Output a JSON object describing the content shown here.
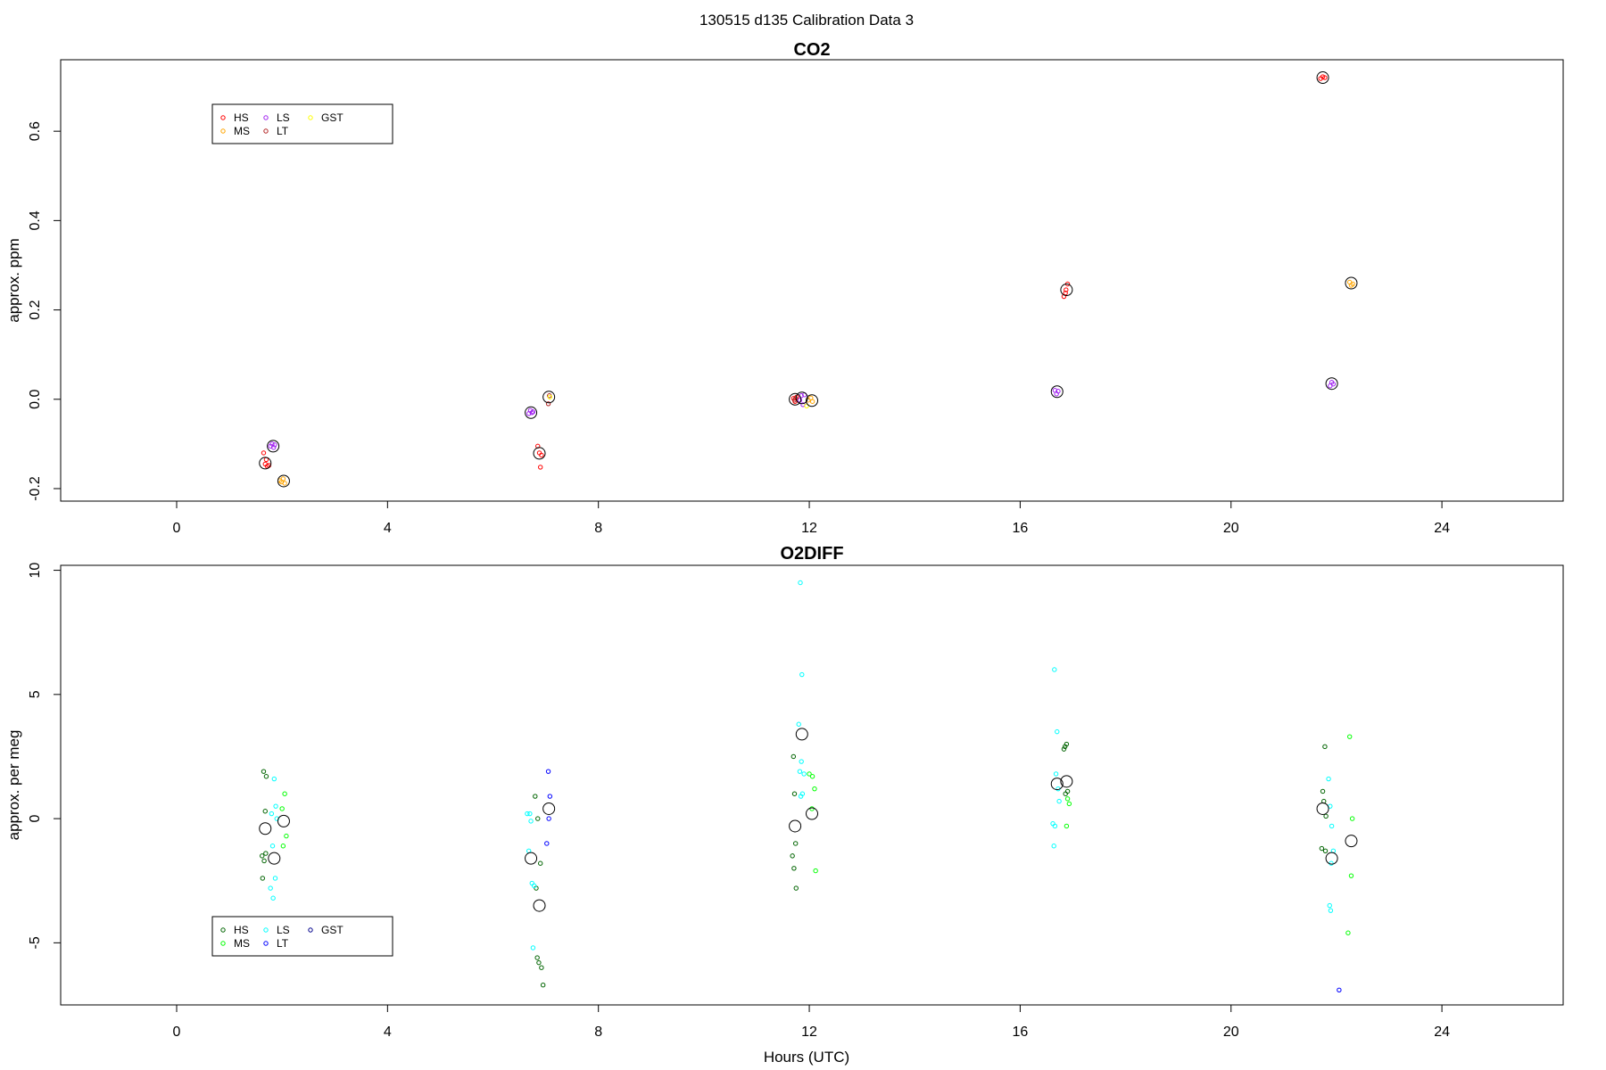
{
  "figure": {
    "suptitle": "130515   d135   Calibration Data 3",
    "xlabel": "Hours (UTC)"
  },
  "chart_data": [
    {
      "type": "scatter",
      "title": "CO2",
      "xlabel": "",
      "ylabel": "approx. ppm",
      "xlim": [
        -2.2,
        26.3
      ],
      "ylim": [
        -0.228,
        0.76
      ],
      "xticks": [
        0,
        4,
        8,
        12,
        16,
        20,
        24
      ],
      "yticks": [
        -0.2,
        0.0,
        0.2,
        0.4,
        0.6
      ],
      "ytick_labels": [
        "-0.2",
        "0.0",
        "0.2",
        "0.4",
        "0.6"
      ],
      "grid": false,
      "legend_position": "top-left",
      "legend": [
        {
          "label": "HS",
          "color": "#ff0000"
        },
        {
          "label": "MS",
          "color": "#ffa500"
        },
        {
          "label": "LS",
          "color": "#a020f0"
        },
        {
          "label": "LT",
          "color": "#b22222"
        },
        {
          "label": "GST",
          "color": "#ffff00"
        }
      ],
      "series": [
        {
          "name": "HS",
          "color": "#ff0000",
          "points": [
            [
              1.65,
              -0.12
            ],
            [
              1.68,
              -0.145
            ],
            [
              1.72,
              -0.15
            ],
            [
              1.7,
              -0.135
            ],
            [
              1.75,
              -0.148
            ],
            [
              6.85,
              -0.105
            ],
            [
              6.88,
              -0.12
            ],
            [
              6.9,
              -0.152
            ],
            [
              6.92,
              -0.125
            ],
            [
              11.7,
              0.002
            ],
            [
              11.73,
              -0.005
            ],
            [
              11.76,
              0.005
            ],
            [
              16.83,
              0.23
            ],
            [
              16.87,
              0.245
            ],
            [
              16.9,
              0.258
            ],
            [
              16.86,
              0.238
            ],
            [
              21.7,
              0.718
            ],
            [
              21.74,
              0.722
            ],
            [
              21.78,
              0.72
            ]
          ]
        },
        {
          "name": "MS",
          "color": "#ffa500",
          "points": [
            [
              1.96,
              -0.182
            ],
            [
              1.99,
              -0.185
            ],
            [
              2.02,
              -0.178
            ],
            [
              2.05,
              -0.188
            ],
            [
              11.98,
              -0.002
            ],
            [
              12.03,
              0.003
            ],
            [
              12.06,
              -0.005
            ],
            [
              22.25,
              0.262
            ],
            [
              22.28,
              0.255
            ],
            [
              22.31,
              0.258
            ]
          ]
        },
        {
          "name": "LS",
          "color": "#a020f0",
          "points": [
            [
              1.78,
              -0.105
            ],
            [
              1.81,
              -0.1
            ],
            [
              1.84,
              -0.108
            ],
            [
              1.86,
              -0.102
            ],
            [
              6.68,
              -0.032
            ],
            [
              6.71,
              -0.025
            ],
            [
              6.74,
              -0.03
            ],
            [
              6.76,
              -0.028
            ],
            [
              11.85,
              0.008
            ],
            [
              11.88,
              -0.012
            ],
            [
              11.82,
              -0.002
            ],
            [
              11.91,
              0.01
            ],
            [
              16.66,
              0.02
            ],
            [
              16.69,
              0.012
            ],
            [
              16.72,
              0.018
            ],
            [
              21.88,
              0.03
            ],
            [
              21.91,
              0.038
            ],
            [
              21.94,
              0.034
            ]
          ]
        },
        {
          "name": "LT",
          "color": "#b22222",
          "points": [
            [
              7.05,
              -0.01
            ],
            [
              7.07,
              0.008
            ],
            [
              11.72,
              -0.002
            ],
            [
              11.74,
              0.002
            ]
          ]
        },
        {
          "name": "GST",
          "color": "#ffff00",
          "points": [
            [
              7.08,
              0.005
            ],
            [
              11.95,
              -0.015
            ]
          ]
        }
      ],
      "means": [
        [
          1.68,
          -0.143
        ],
        [
          1.83,
          -0.105
        ],
        [
          2.03,
          -0.183
        ],
        [
          6.72,
          -0.03
        ],
        [
          6.88,
          -0.121
        ],
        [
          7.06,
          0.005
        ],
        [
          11.73,
          0.0
        ],
        [
          11.86,
          0.003
        ],
        [
          12.05,
          -0.003
        ],
        [
          16.7,
          0.017
        ],
        [
          16.88,
          0.245
        ],
        [
          21.74,
          0.72
        ],
        [
          21.91,
          0.035
        ],
        [
          22.28,
          0.26
        ]
      ]
    },
    {
      "type": "scatter",
      "title": "O2DIFF",
      "xlabel": "Hours (UTC)",
      "ylabel": "approx. per meg",
      "xlim": [
        -2.2,
        26.3
      ],
      "ylim": [
        -7.5,
        10.2
      ],
      "xticks": [
        0,
        4,
        8,
        12,
        16,
        20,
        24
      ],
      "yticks": [
        -5,
        0,
        5,
        10
      ],
      "ytick_labels": [
        "-5",
        "0",
        "5",
        "10"
      ],
      "grid": false,
      "legend_position": "bottom-left",
      "legend": [
        {
          "label": "HS",
          "color": "#006400"
        },
        {
          "label": "MS",
          "color": "#00ff00"
        },
        {
          "label": "LS",
          "color": "#00ffff"
        },
        {
          "label": "LT",
          "color": "#0000ff"
        },
        {
          "label": "GST",
          "color": "#00008b"
        }
      ],
      "series": [
        {
          "name": "HS",
          "color": "#006400",
          "points": [
            [
              1.65,
              1.9
            ],
            [
              1.7,
              1.7
            ],
            [
              1.68,
              0.3
            ],
            [
              1.62,
              -1.5
            ],
            [
              1.66,
              -1.7
            ],
            [
              1.63,
              -2.4
            ],
            [
              1.69,
              -1.4
            ],
            [
              6.8,
              0.9
            ],
            [
              6.85,
              0.0
            ],
            [
              6.9,
              -1.8
            ],
            [
              6.82,
              -2.8
            ],
            [
              6.87,
              -5.8
            ],
            [
              6.92,
              -6.0
            ],
            [
              6.95,
              -6.7
            ],
            [
              6.84,
              -5.6
            ],
            [
              11.7,
              2.5
            ],
            [
              11.72,
              1.0
            ],
            [
              11.74,
              -1.0
            ],
            [
              11.68,
              -1.5
            ],
            [
              11.71,
              -2.0
            ],
            [
              11.75,
              -2.8
            ],
            [
              16.85,
              2.9
            ],
            [
              16.88,
              3.0
            ],
            [
              16.83,
              2.8
            ],
            [
              16.9,
              1.1
            ],
            [
              16.86,
              1.0
            ],
            [
              21.78,
              2.9
            ],
            [
              21.74,
              1.1
            ],
            [
              21.76,
              0.7
            ],
            [
              21.8,
              0.1
            ],
            [
              21.72,
              -1.2
            ],
            [
              21.79,
              -1.3
            ]
          ]
        },
        {
          "name": "MS",
          "color": "#00ff00",
          "points": [
            [
              2.05,
              1.0
            ],
            [
              2.0,
              0.4
            ],
            [
              2.08,
              -0.7
            ],
            [
              2.02,
              -1.1
            ],
            [
              12.0,
              1.8
            ],
            [
              12.06,
              1.7
            ],
            [
              12.1,
              1.2
            ],
            [
              12.05,
              0.4
            ],
            [
              12.12,
              -2.1
            ],
            [
              16.9,
              0.8
            ],
            [
              16.93,
              0.6
            ],
            [
              16.88,
              -0.3
            ],
            [
              22.25,
              3.3
            ],
            [
              22.3,
              0.0
            ],
            [
              22.28,
              -2.3
            ],
            [
              22.22,
              -4.6
            ]
          ]
        },
        {
          "name": "LS",
          "color": "#00ffff",
          "points": [
            [
              1.8,
              0.2
            ],
            [
              1.85,
              1.6
            ],
            [
              1.88,
              0.5
            ],
            [
              1.9,
              0.0
            ],
            [
              1.82,
              -1.1
            ],
            [
              1.87,
              -2.4
            ],
            [
              1.78,
              -2.8
            ],
            [
              1.83,
              -3.2
            ],
            [
              6.65,
              0.2
            ],
            [
              6.7,
              0.2
            ],
            [
              6.72,
              -0.1
            ],
            [
              6.68,
              -1.3
            ],
            [
              6.74,
              -2.6
            ],
            [
              6.78,
              -2.7
            ],
            [
              6.76,
              -5.2
            ],
            [
              11.8,
              3.8
            ],
            [
              11.85,
              2.3
            ],
            [
              11.9,
              1.8
            ],
            [
              11.82,
              1.9
            ],
            [
              11.87,
              1.0
            ],
            [
              11.84,
              0.9
            ],
            [
              11.86,
              5.8
            ],
            [
              11.83,
              9.5
            ],
            [
              16.65,
              6.0
            ],
            [
              16.7,
              3.5
            ],
            [
              16.68,
              1.8
            ],
            [
              16.72,
              1.2
            ],
            [
              16.74,
              0.7
            ],
            [
              16.62,
              -0.2
            ],
            [
              16.66,
              -0.3
            ],
            [
              16.64,
              -1.1
            ],
            [
              21.85,
              1.6
            ],
            [
              21.88,
              0.5
            ],
            [
              21.91,
              -0.3
            ],
            [
              21.94,
              -1.3
            ],
            [
              21.9,
              -1.8
            ],
            [
              21.87,
              -3.5
            ],
            [
              21.89,
              -3.7
            ]
          ]
        },
        {
          "name": "LT",
          "color": "#0000ff",
          "points": [
            [
              7.05,
              1.9
            ],
            [
              7.08,
              0.9
            ],
            [
              7.06,
              0.0
            ],
            [
              7.02,
              -1.0
            ],
            [
              22.05,
              -6.9
            ]
          ]
        },
        {
          "name": "GST",
          "color": "#00008b",
          "points": []
        }
      ],
      "means": [
        [
          1.68,
          -0.4
        ],
        [
          1.85,
          -1.6
        ],
        [
          2.03,
          -0.1
        ],
        [
          6.72,
          -1.6
        ],
        [
          6.88,
          -3.5
        ],
        [
          7.06,
          0.4
        ],
        [
          11.73,
          -0.3
        ],
        [
          11.86,
          3.4
        ],
        [
          12.05,
          0.2
        ],
        [
          16.7,
          1.4
        ],
        [
          16.88,
          1.5
        ],
        [
          21.74,
          0.4
        ],
        [
          21.91,
          -1.6
        ],
        [
          22.28,
          -0.9
        ]
      ]
    }
  ]
}
